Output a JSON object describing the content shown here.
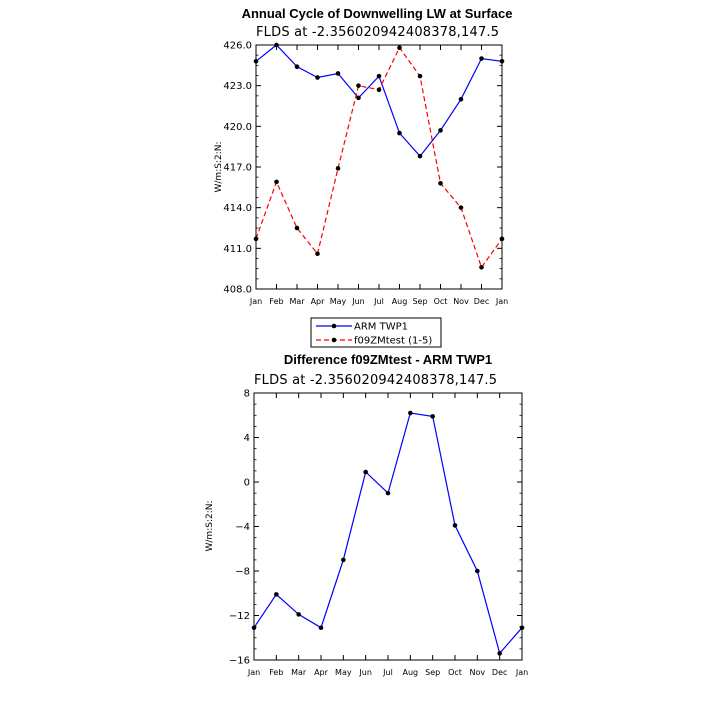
{
  "chart_data": [
    {
      "type": "line",
      "title": "Annual Cycle of Downwelling LW at Surface",
      "subtitle": "FLDS at -2.356020942408378,147.5",
      "ylabel": "W/m:S:2:N:",
      "categories": [
        "Jan",
        "Feb",
        "Mar",
        "Apr",
        "May",
        "Jun",
        "Jul",
        "Aug",
        "Sep",
        "Oct",
        "Nov",
        "Dec",
        "Jan"
      ],
      "ylim": [
        408.0,
        426.0
      ],
      "yticks": [
        "408.0",
        "411.0",
        "414.0",
        "417.0",
        "420.0",
        "423.0",
        "426.0"
      ],
      "series": [
        {
          "name": "ARM TWP1",
          "color": "#0000ff",
          "dash": "solid",
          "values": [
            424.8,
            426.0,
            424.4,
            423.6,
            423.9,
            422.1,
            423.7,
            419.5,
            417.8,
            419.7,
            422.0,
            425.0,
            424.8
          ]
        },
        {
          "name": "f09ZMtest (1-5)",
          "color": "#ff0000",
          "dash": "dashed",
          "values": [
            411.7,
            415.9,
            412.5,
            410.6,
            416.9,
            423.0,
            422.7,
            425.8,
            423.7,
            415.8,
            414.0,
            409.6,
            411.7
          ]
        }
      ],
      "grid": false,
      "legend": "below"
    },
    {
      "type": "line",
      "title": "Difference f09ZMtest - ARM TWP1",
      "subtitle": "FLDS at -2.356020942408378,147.5",
      "ylabel": "W/m:S:2:N:",
      "categories": [
        "Jan",
        "Feb",
        "Mar",
        "Apr",
        "May",
        "Jun",
        "Jul",
        "Aug",
        "Sep",
        "Oct",
        "Nov",
        "Dec",
        "Jan"
      ],
      "ylim": [
        -16,
        8
      ],
      "yticks": [
        "8",
        "4",
        "0",
        "-4",
        "-8",
        "-12",
        "-16"
      ],
      "series": [
        {
          "color": "#0000ff",
          "dash": "solid",
          "values": [
            -13.1,
            -10.1,
            -11.9,
            -13.1,
            -7.0,
            0.9,
            -1.0,
            6.2,
            5.9,
            -3.9,
            -8.0,
            -15.4,
            -13.1
          ]
        }
      ],
      "grid": false
    }
  ]
}
